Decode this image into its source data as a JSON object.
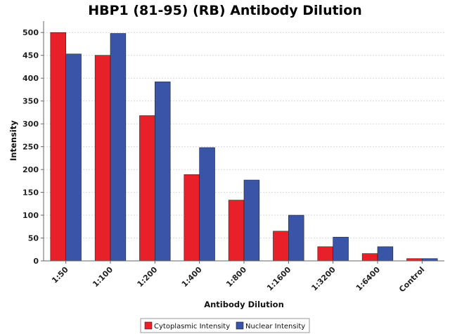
{
  "chart_data": {
    "type": "bar",
    "title": "HBP1 (81-95) (RB) Antibody Dilution",
    "xlabel": "Antibody Dilution",
    "ylabel": "Intensity",
    "categories": [
      "1:50",
      "1:100",
      "1:200",
      "1:400",
      "1:800",
      "1:1600",
      "1:3200",
      "1:6400",
      "Control"
    ],
    "series": [
      {
        "name": "Cytoplasmic Intensity",
        "color": "#e8202a",
        "values": [
          500,
          450,
          318,
          189,
          133,
          65,
          31,
          16,
          5
        ]
      },
      {
        "name": "Nuclear Intensity",
        "color": "#3a54a8",
        "values": [
          453,
          498,
          392,
          248,
          177,
          100,
          52,
          31,
          5
        ]
      }
    ],
    "ylim": [
      0,
      525
    ],
    "yticks": [
      0,
      50,
      100,
      150,
      200,
      250,
      300,
      350,
      400,
      450,
      500
    ],
    "grid": true,
    "legend_position": "bottom-center"
  }
}
